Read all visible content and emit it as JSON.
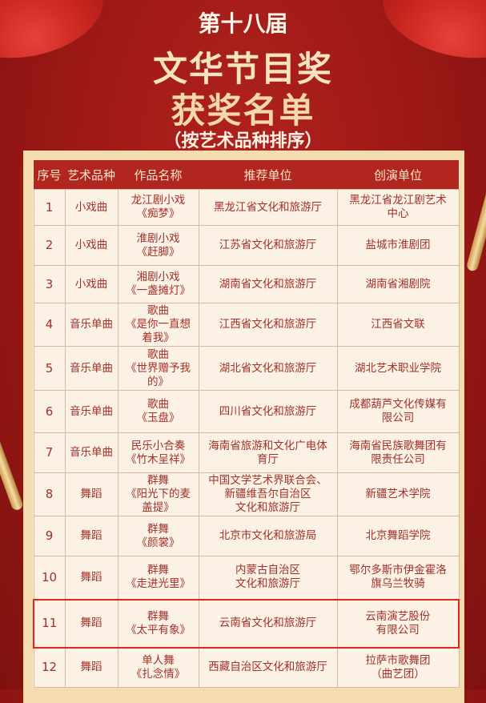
{
  "header": {
    "edition": "第十八届",
    "award": "文华节目奖",
    "list_title": "获奖名单",
    "note": "（按艺术品种排序）"
  },
  "colors": {
    "background": "#9a1815",
    "header_row": "#b1261f",
    "text": "#a3302a",
    "cell_bg": "#fbf1e4",
    "highlight_border": "#e8231c"
  },
  "table": {
    "columns": [
      "序号",
      "艺术品种",
      "作品名称",
      "推荐单位",
      "创演单位"
    ],
    "highlighted_row": 11,
    "rows": [
      {
        "no": "1",
        "category": "小戏曲",
        "work": "龙江剧小戏\n《痴梦》",
        "recommender": "黑龙江省文化和旅游厅",
        "producer": "黑龙江省龙江剧艺术\n中心"
      },
      {
        "no": "2",
        "category": "小戏曲",
        "work": "淮剧小戏\n《赶脚》",
        "recommender": "江苏省文化和旅游厅",
        "producer": "盐城市淮剧团"
      },
      {
        "no": "3",
        "category": "小戏曲",
        "work": "湘剧小戏\n《一盏摊灯》",
        "recommender": "湖南省文化和旅游厅",
        "producer": "湖南省湘剧院"
      },
      {
        "no": "4",
        "category": "音乐单曲",
        "work": "歌曲\n《是你一直想\n着我》",
        "recommender": "江西省文化和旅游厅",
        "producer": "江西省文联"
      },
      {
        "no": "5",
        "category": "音乐单曲",
        "work": "歌曲\n《世界赠予我\n的》",
        "recommender": "湖北省文化和旅游厅",
        "producer": "湖北艺术职业学院"
      },
      {
        "no": "6",
        "category": "音乐单曲",
        "work": "歌曲\n《玉盘》",
        "recommender": "四川省文化和旅游厅",
        "producer": "成都葫芦文化传媒有\n限公司"
      },
      {
        "no": "7",
        "category": "音乐单曲",
        "work": "民乐小合奏\n《竹木呈祥》",
        "recommender": "海南省旅游和文化广电体\n育厅",
        "producer": "海南省民族歌舞团有\n限责任公司"
      },
      {
        "no": "8",
        "category": "舞蹈",
        "work": "群舞\n《阳光下的麦\n盖提》",
        "recommender": "中国文学艺术界联合会、\n新疆维吾尔自治区\n文化和旅游厅",
        "producer": "新疆艺术学院"
      },
      {
        "no": "9",
        "category": "舞蹈",
        "work": "群舞\n《颜裳》",
        "recommender": "北京市文化和旅游局",
        "producer": "北京舞蹈学院"
      },
      {
        "no": "10",
        "category": "舞蹈",
        "work": "群舞\n《走进光里》",
        "recommender": "内蒙古自治区\n文化和旅游厅",
        "producer": "鄂尔多斯市伊金霍洛\n旗乌兰牧骑"
      },
      {
        "no": "11",
        "category": "舞蹈",
        "work": "群舞\n《太平有象》",
        "recommender": "云南省文化和旅游厅",
        "producer": "云南演艺股份\n有限公司"
      },
      {
        "no": "12",
        "category": "舞蹈",
        "work": "单人舞\n《扎念情》",
        "recommender": "西藏自治区文化和旅游厅",
        "producer": "拉萨市歌舞团\n（曲艺团）"
      }
    ]
  }
}
